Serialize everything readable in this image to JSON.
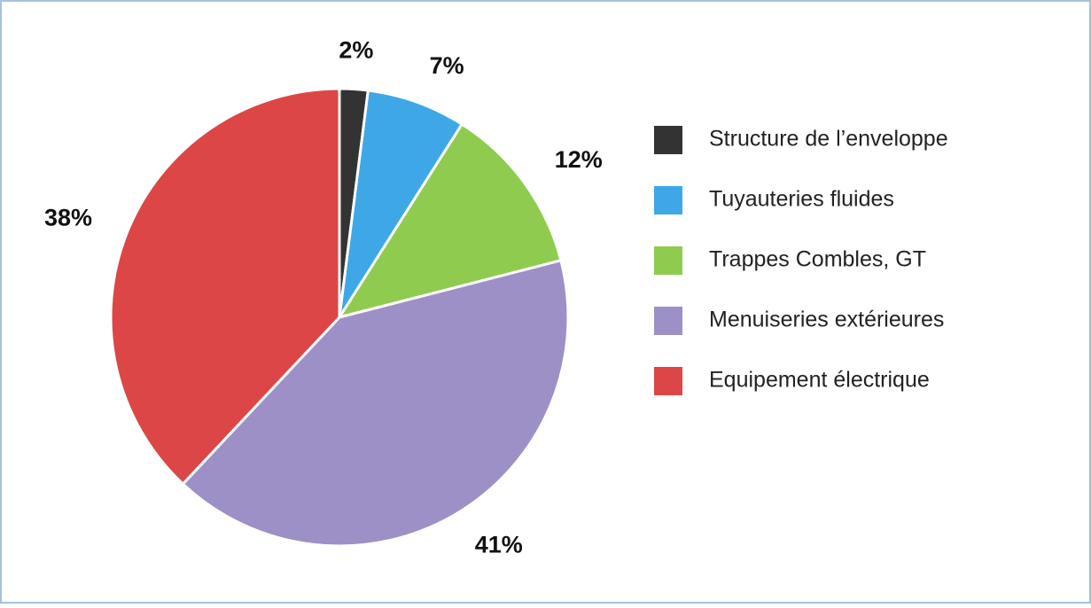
{
  "chart_data": {
    "type": "pie",
    "categories": [
      "Structure de l’enveloppe",
      "Tuyauteries fluides",
      "Trappes Combles, GT",
      "Menuiseries extérieures",
      "Equipement électrique"
    ],
    "values": [
      2,
      7,
      12,
      41,
      38
    ],
    "value_labels": [
      "2%",
      "7%",
      "12%",
      "41%",
      "38%"
    ],
    "colors": [
      "#333333",
      "#3ea8e6",
      "#8fcb4e",
      "#9d90c6",
      "#dd4646"
    ],
    "legend": "right"
  }
}
